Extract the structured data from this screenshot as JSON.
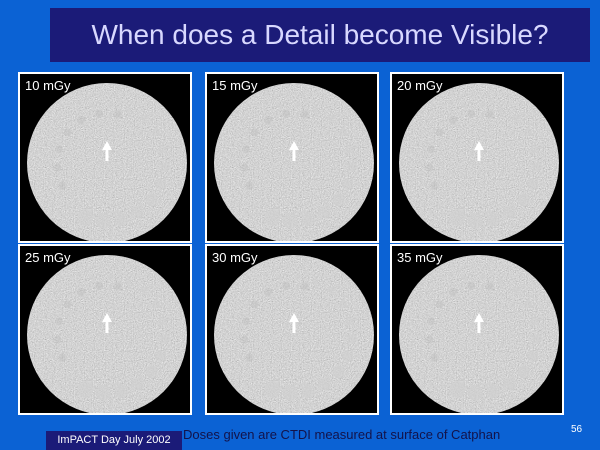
{
  "title": "When does a Detail become Visible?",
  "panels": [
    {
      "label": "10 mGy"
    },
    {
      "label": "15 mGy"
    },
    {
      "label": "20 mGy"
    },
    {
      "label": "25 mGy"
    },
    {
      "label": "30 mGy"
    },
    {
      "label": "35 mGy"
    }
  ],
  "caption": "Doses given are CTDI measured at surface of Catphan",
  "footer": "ImPACT Day July 2002",
  "page_number": "56"
}
